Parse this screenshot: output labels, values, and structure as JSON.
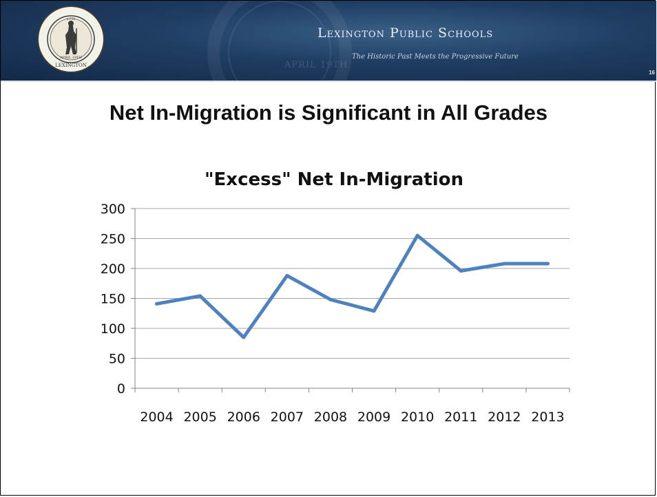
{
  "header": {
    "school_name": "Lexington Public Schools",
    "tagline": "The Historic Past Meets the Progressive Future",
    "page_number": "16",
    "watermark_text": "APRIL 19TH",
    "seal": {
      "date": "1775",
      "april": "APRIL 19TH",
      "town": "LEXINGTON",
      "motto": "WHAT A GLORIOUS MORNING FOR AMERICA"
    }
  },
  "slide_title": "Net In-Migration is Significant in All Grades",
  "colors": {
    "line": "#4f81bd",
    "banner": "#1f3d63",
    "gridline": "#a6a6a6"
  },
  "chart_data": {
    "type": "line",
    "title": "\"Excess\" Net In-Migration",
    "categories": [
      "2004",
      "2005",
      "2006",
      "2007",
      "2008",
      "2009",
      "2010",
      "2011",
      "2012",
      "2013"
    ],
    "series": [
      {
        "values": [
          141,
          154,
          85,
          188,
          148,
          129,
          255,
          196,
          208,
          208
        ]
      }
    ],
    "ylim": [
      0,
      300
    ],
    "yticks": [
      0,
      50,
      100,
      150,
      200,
      250,
      300
    ],
    "xlabel": "",
    "ylabel": "",
    "grid": true,
    "legend": "none"
  }
}
